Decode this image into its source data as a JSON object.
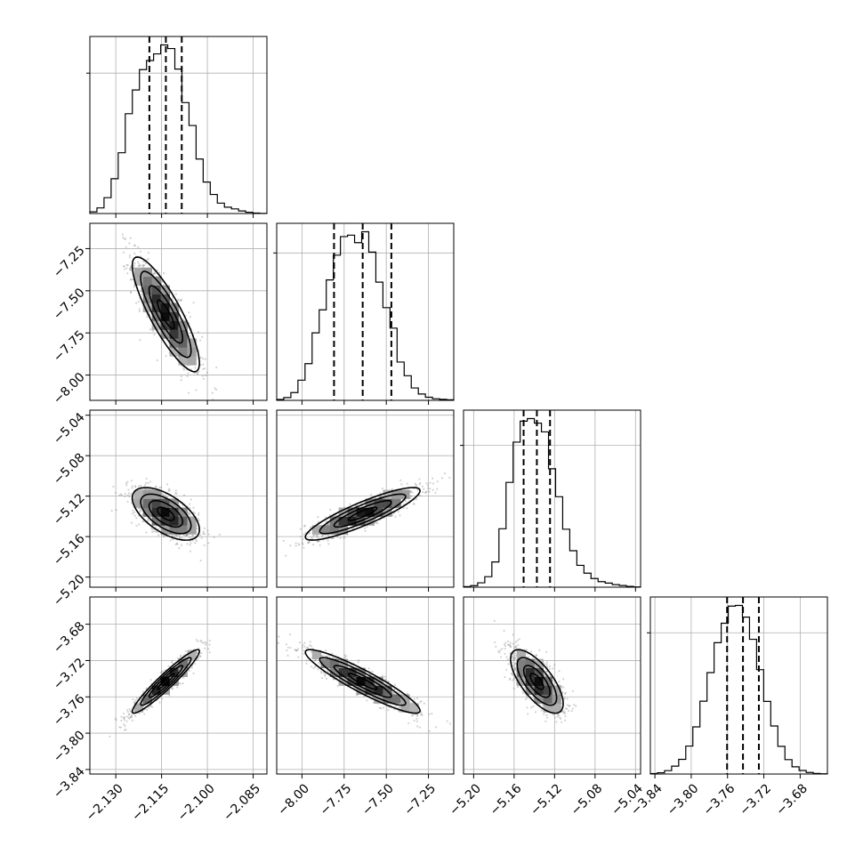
{
  "chart_data": {
    "type": "corner",
    "grid": true,
    "parameters": [
      {
        "mean": -2.1136,
        "std": 0.0055,
        "range": [
          -2.1385,
          -2.0805
        ],
        "ticks": [
          -2.13,
          -2.115,
          -2.1,
          -2.085
        ],
        "tick_labels": [
          "−2.130",
          "−2.115",
          "−2.100",
          "−2.085"
        ],
        "quantiles": [
          -2.119,
          -2.1136,
          -2.1084
        ],
        "hist": [
          12,
          40,
          113,
          248,
          433,
          711,
          880,
          1025,
          1090,
          1137,
          1201,
          1175,
          1029,
          790,
          627,
          388,
          224,
          136,
          74,
          45,
          33,
          18,
          9,
          3,
          1
        ]
      },
      {
        "mean": -7.64,
        "std": 0.17,
        "range": [
          -8.15,
          -7.1
        ],
        "ticks": [
          -8.0,
          -7.75,
          -7.5,
          -7.25
        ],
        "tick_labels": [
          "−8.00",
          "−7.75",
          "−7.50",
          "−7.25"
        ],
        "quantiles": [
          -7.81,
          -7.64,
          -7.47
        ],
        "hist": [
          6,
          19,
          53,
          137,
          249,
          458,
          614,
          817,
          985,
          1111,
          1121,
          1070,
          1144,
          1006,
          802,
          629,
          490,
          260,
          167,
          84,
          43,
          21,
          11,
          7,
          4
        ]
      },
      {
        "mean": -5.1375,
        "std": 0.013,
        "range": [
          -5.21,
          -5.035
        ],
        "ticks": [
          -5.2,
          -5.16,
          -5.12,
          -5.08,
          -5.04
        ],
        "tick_labels": [
          "−5.20",
          "−5.16",
          "−5.12",
          "−5.08",
          "−5.04"
        ],
        "quantiles": [
          -5.1506,
          -5.1375,
          -5.1245
        ],
        "hist": [
          4,
          11,
          31,
          74,
          178,
          412,
          739,
          1023,
          1171,
          1189,
          1157,
          1095,
          835,
          638,
          409,
          257,
          154,
          99,
          61,
          39,
          29,
          18,
          12,
          6,
          2
        ]
      },
      {
        "mean": -3.743,
        "std": 0.0175,
        "range": [
          -3.845,
          -3.65
        ],
        "ticks": [
          -3.84,
          -3.8,
          -3.76,
          -3.72,
          -3.68
        ],
        "tick_labels": [
          "−3.84",
          "−3.80",
          "−3.76",
          "−3.72",
          "−3.68"
        ],
        "quantiles": [
          -3.7605,
          -3.743,
          -3.7255
        ],
        "hist": [
          3,
          9,
          24,
          56,
          104,
          198,
          334,
          516,
          718,
          930,
          1068,
          1189,
          1194,
          1111,
          954,
          739,
          514,
          340,
          196,
          102,
          51,
          25,
          11,
          4,
          2
        ]
      }
    ],
    "correlations": [
      [
        1.0,
        -0.85,
        -0.6,
        0.95
      ],
      [
        -0.85,
        1.0,
        0.88,
        -0.92
      ],
      [
        -0.6,
        0.88,
        1.0,
        -0.7
      ],
      [
        0.95,
        -0.92,
        -0.7,
        1.0
      ]
    ]
  }
}
